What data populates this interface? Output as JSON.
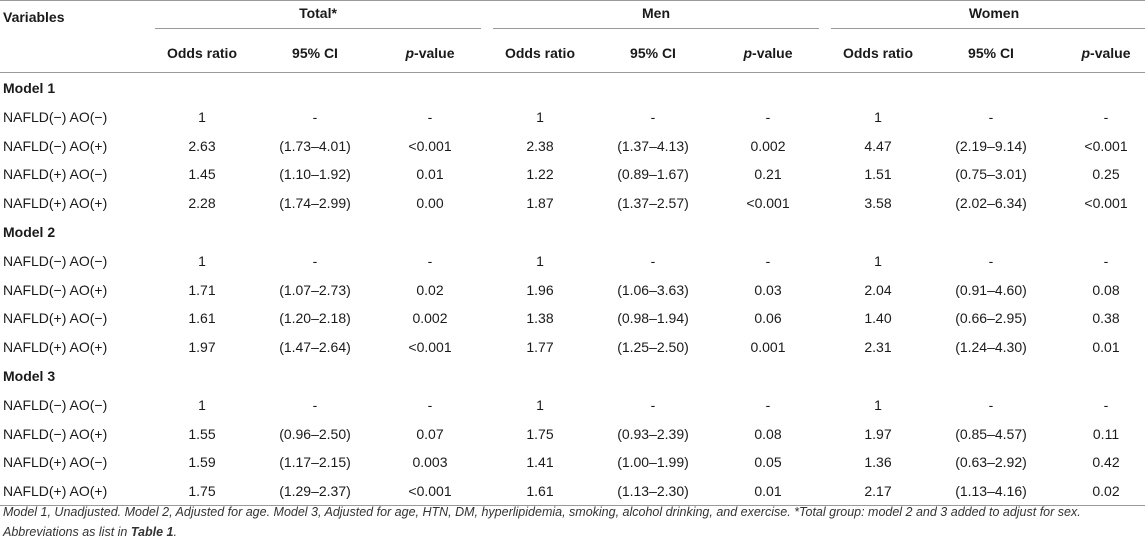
{
  "header": {
    "variables": "Variables",
    "groups": [
      "Total*",
      "Men",
      "Women"
    ],
    "sub_or": "Odds ratio",
    "sub_ci": "95% CI",
    "sub_p_italic": "p",
    "sub_p_rest": "-value"
  },
  "models": [
    {
      "title": "Model 1",
      "rows": [
        {
          "var": "NAFLD(−) AO(−)",
          "vals": [
            "1",
            "-",
            "-",
            "1",
            "-",
            "-",
            "1",
            "-",
            "-"
          ]
        },
        {
          "var": "NAFLD(−) AO(+)",
          "vals": [
            "2.63",
            "(1.73–4.01)",
            "<0.001",
            "2.38",
            "(1.37–4.13)",
            "0.002",
            "4.47",
            "(2.19–9.14)",
            "<0.001"
          ]
        },
        {
          "var": "NAFLD(+) AO(−)",
          "vals": [
            "1.45",
            "(1.10–1.92)",
            "0.01",
            "1.22",
            "(0.89–1.67)",
            "0.21",
            "1.51",
            "(0.75–3.01)",
            "0.25"
          ]
        },
        {
          "var": "NAFLD(+) AO(+)",
          "vals": [
            "2.28",
            "(1.74–2.99)",
            "0.00",
            "1.87",
            "(1.37–2.57)",
            "<0.001",
            "3.58",
            "(2.02–6.34)",
            "<0.001"
          ]
        }
      ]
    },
    {
      "title": "Model 2",
      "rows": [
        {
          "var": "NAFLD(−) AO(−)",
          "vals": [
            "1",
            "-",
            "-",
            "1",
            "-",
            "-",
            "1",
            "-",
            "-"
          ]
        },
        {
          "var": "NAFLD(−) AO(+)",
          "vals": [
            "1.71",
            "(1.07–2.73)",
            "0.02",
            "1.96",
            "(1.06–3.63)",
            "0.03",
            "2.04",
            "(0.91–4.60)",
            "0.08"
          ]
        },
        {
          "var": "NAFLD(+) AO(−)",
          "vals": [
            "1.61",
            "(1.20–2.18)",
            "0.002",
            "1.38",
            "(0.98–1.94)",
            "0.06",
            "1.40",
            "(0.66–2.95)",
            "0.38"
          ]
        },
        {
          "var": "NAFLD(+) AO(+)",
          "vals": [
            "1.97",
            "(1.47–2.64)",
            "<0.001",
            "1.77",
            "(1.25–2.50)",
            "0.001",
            "2.31",
            "(1.24–4.30)",
            "0.01"
          ]
        }
      ]
    },
    {
      "title": "Model 3",
      "rows": [
        {
          "var": "NAFLD(−) AO(−)",
          "vals": [
            "1",
            "-",
            "-",
            "1",
            "-",
            "-",
            "1",
            "-",
            "-"
          ]
        },
        {
          "var": "NAFLD(−) AO(+)",
          "vals": [
            "1.55",
            "(0.96–2.50)",
            "0.07",
            "1.75",
            "(0.93–2.39)",
            "0.08",
            "1.97",
            "(0.85–4.57)",
            "0.11"
          ]
        },
        {
          "var": "NAFLD(+) AO(−)",
          "vals": [
            "1.59",
            "(1.17–2.15)",
            "0.003",
            "1.41",
            "(1.00–1.99)",
            "0.05",
            "1.36",
            "(0.63–2.92)",
            "0.42"
          ]
        },
        {
          "var": "NAFLD(+) AO(+)",
          "vals": [
            "1.75",
            "(1.29–2.37)",
            "<0.001",
            "1.61",
            "(1.13–2.30)",
            "0.01",
            "2.17",
            "(1.13–4.16)",
            "0.02"
          ]
        }
      ]
    }
  ],
  "footnote": {
    "text": "Model 1, Unadjusted. Model 2, Adjusted for age. Model 3, Adjusted for age, HTN, DM, hyperlipidemia, smoking, alcohol drinking, and exercise. *Total group: model 2 and 3 added to adjust for sex. Abbreviations as list in ",
    "ref": "Table 1",
    "end": "."
  }
}
